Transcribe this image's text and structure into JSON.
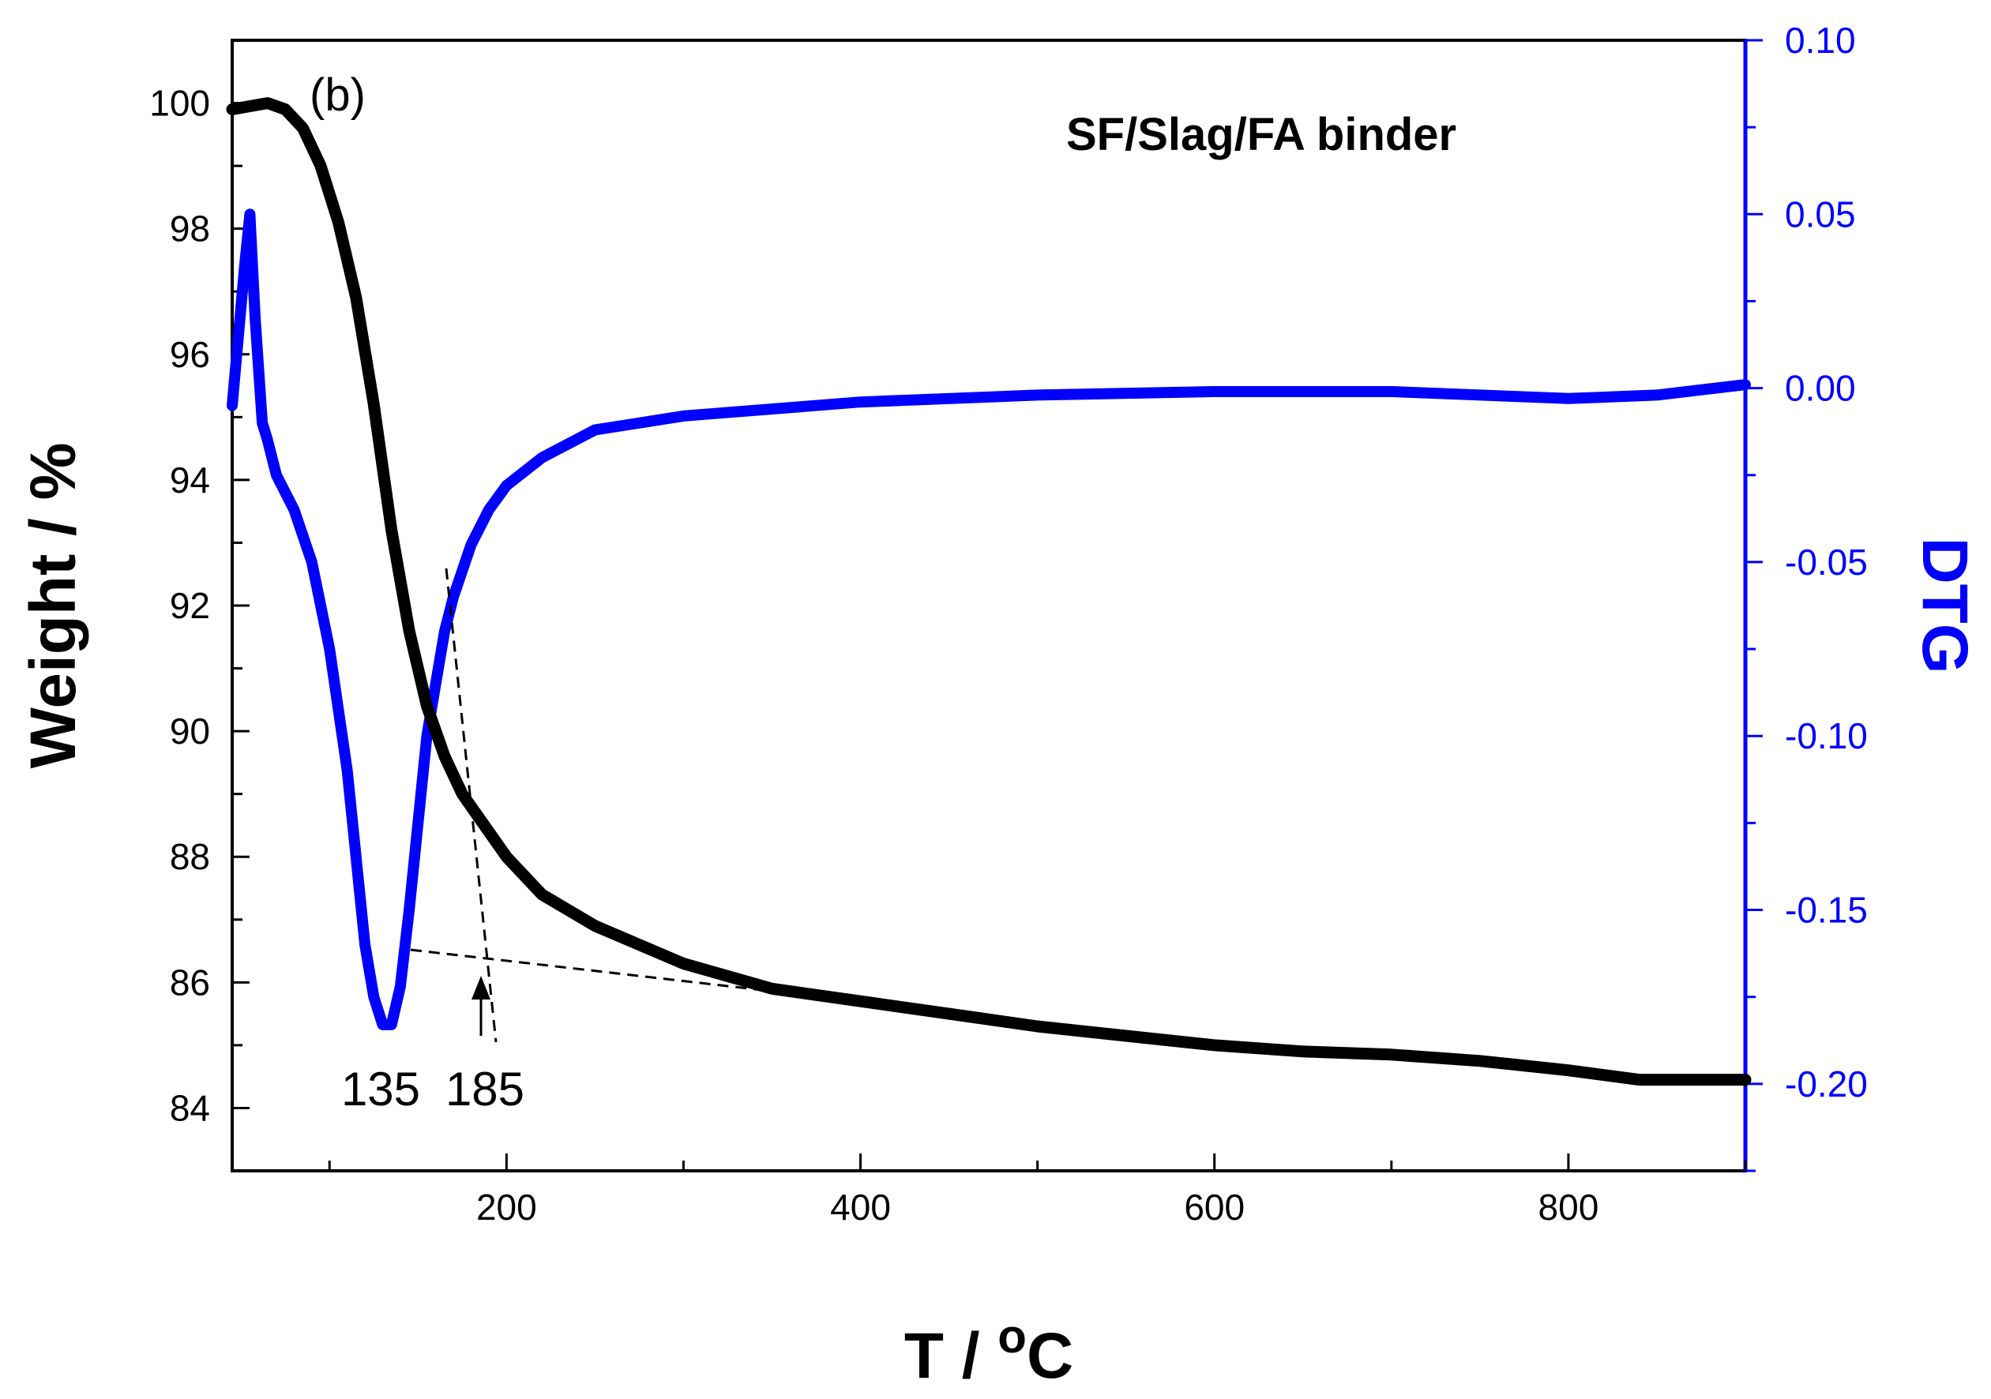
{
  "chart_data": {
    "type": "line",
    "panel_label": "(b)",
    "title": "SF/Slag/FA binder",
    "xlabel": "T  / oC",
    "xlabel_main": "T  / ",
    "xlabel_sup": "o",
    "xlabel_unit": "C",
    "ylabel_left": "Weight / %",
    "ylabel_right": "DTG",
    "xlim": [
      45,
      900
    ],
    "ylim_left": [
      83,
      101
    ],
    "ylim_right": [
      -0.225,
      0.1
    ],
    "x_ticks": [
      "200",
      "400",
      "600",
      "800"
    ],
    "y_left_ticks": [
      "84",
      "86",
      "88",
      "90",
      "92",
      "94",
      "96",
      "98",
      "100"
    ],
    "y_right_ticks": [
      "-0.20",
      "-0.15",
      "-0.10",
      "-0.05",
      "0.00",
      "0.05",
      "0.10"
    ],
    "grid": false,
    "colors": {
      "weight": "#000000",
      "dtg": "#0000ff",
      "axes": "#000000",
      "right_axis": "#0000ff"
    },
    "series": [
      {
        "axis": "left",
        "x": [
          45,
          55,
          65,
          75,
          85,
          95,
          105,
          115,
          125,
          135,
          145,
          155,
          165,
          175,
          185,
          200,
          220,
          250,
          300,
          350,
          400,
          450,
          500,
          550,
          600,
          650,
          700,
          750,
          800,
          840,
          900
        ],
        "values": [
          99.9,
          99.95,
          100.0,
          99.9,
          99.6,
          99.0,
          98.1,
          96.9,
          95.2,
          93.2,
          91.6,
          90.4,
          89.6,
          89.0,
          88.6,
          88.0,
          87.4,
          86.9,
          86.3,
          85.9,
          85.7,
          85.5,
          85.3,
          85.15,
          85.0,
          84.9,
          84.85,
          84.75,
          84.6,
          84.45,
          84.45
        ]
      },
      {
        "axis": "right",
        "x": [
          45,
          52,
          55,
          58,
          62,
          65,
          70,
          80,
          90,
          100,
          110,
          115,
          120,
          125,
          130,
          135,
          140,
          145,
          150,
          155,
          160,
          165,
          170,
          180,
          190,
          200,
          220,
          250,
          300,
          400,
          500,
          600,
          700,
          800,
          850,
          900
        ],
        "values": [
          -0.005,
          0.035,
          0.05,
          0.02,
          -0.01,
          -0.015,
          -0.025,
          -0.035,
          -0.05,
          -0.075,
          -0.11,
          -0.135,
          -0.16,
          -0.175,
          -0.183,
          -0.183,
          -0.172,
          -0.15,
          -0.125,
          -0.1,
          -0.085,
          -0.07,
          -0.06,
          -0.045,
          -0.035,
          -0.028,
          -0.02,
          -0.012,
          -0.008,
          -0.004,
          -0.002,
          -0.001,
          -0.001,
          -0.003,
          -0.002,
          0.001
        ]
      }
    ],
    "annotations": [
      {
        "text": "135",
        "x": 135
      },
      {
        "text": "185",
        "x": 185
      }
    ]
  }
}
